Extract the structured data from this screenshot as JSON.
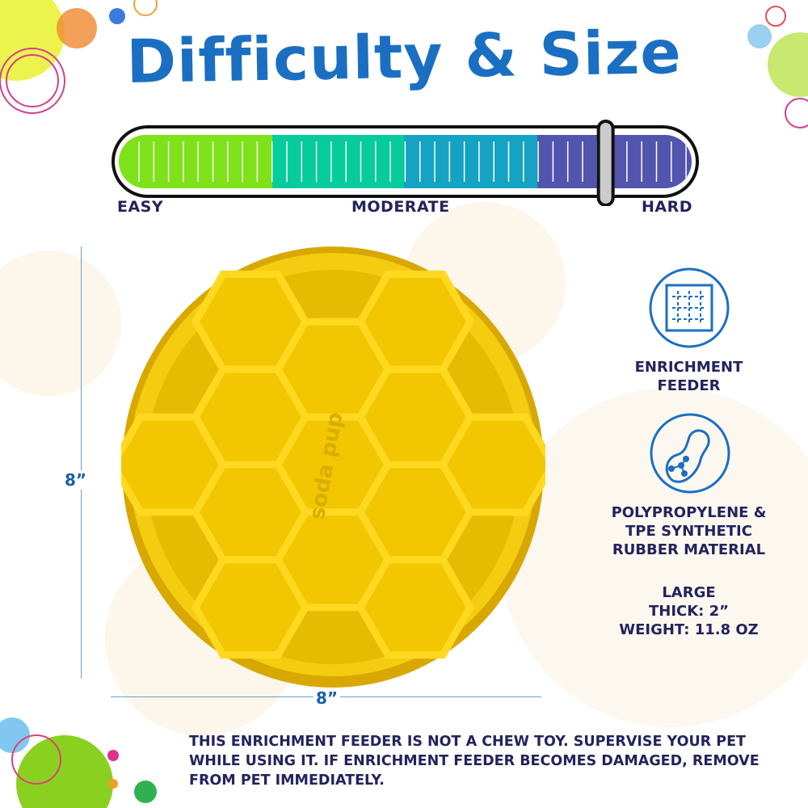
{
  "title": "Difficulty & Size",
  "difficulty": {
    "labels": [
      "EASY",
      "MODERATE",
      "HARD"
    ],
    "level_percent": 85,
    "segment_colors": [
      "#7de21a",
      "#05cc9a",
      "#14a3c2",
      "#5255ad"
    ]
  },
  "dimensions": {
    "height": "8”",
    "width": "8”"
  },
  "product": {
    "brand_mark": "soda pup",
    "color": "#f0c800"
  },
  "features": [
    {
      "icon": "puzzle-icon",
      "label_lines": [
        "ENRICHMENT",
        "FEEDER"
      ]
    },
    {
      "icon": "material-molecule-icon",
      "label_lines": [
        "POLYPROPYLENE  &",
        "TPE SYNTHETIC",
        "RUBBER MATERIAL"
      ]
    }
  ],
  "specs": [
    "LARGE",
    "THICK: 2”",
    "WEIGHT: 11.8 OZ"
  ],
  "warning": "THIS ENRICHMENT FEEDER IS NOT A CHEW TOY. SUPERVISE YOUR PET WHILE USING IT. IF ENRICHMENT FEEDER BECOMES DAMAGED, REMOVE FROM PET IMMEDIATELY."
}
